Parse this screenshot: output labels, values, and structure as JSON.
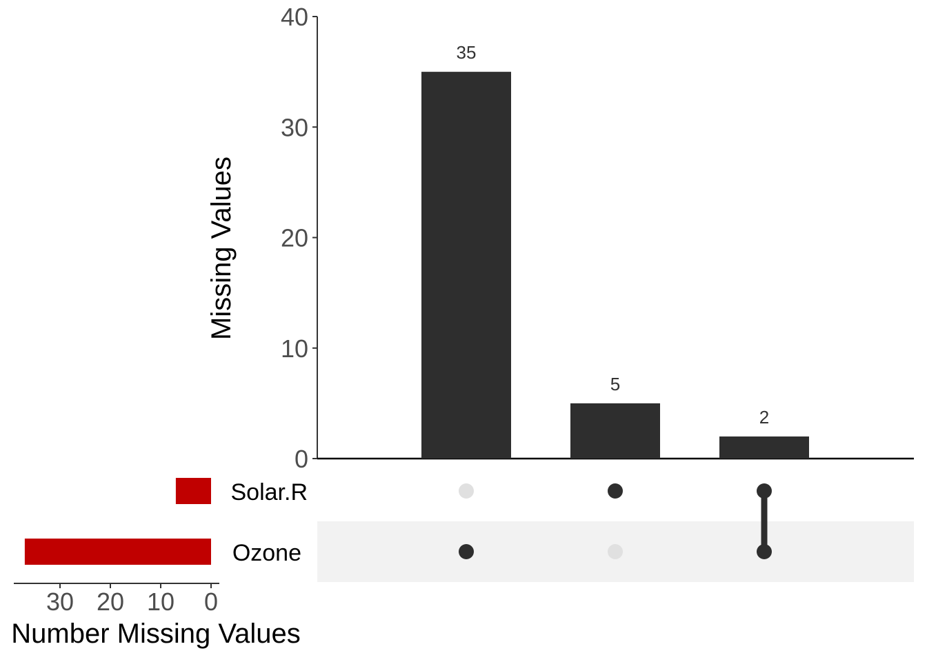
{
  "chart_data": [
    {
      "type": "bar",
      "panel": "intersection-size",
      "ylabel": "Missing Values",
      "ylim": [
        0,
        40
      ],
      "yticks": [
        "0",
        "10",
        "20",
        "30",
        "40"
      ],
      "bars": [
        {
          "sets": [
            "Ozone"
          ],
          "value": 35,
          "label": "35"
        },
        {
          "sets": [
            "Solar.R"
          ],
          "value": 5,
          "label": "5"
        },
        {
          "sets": [
            "Solar.R",
            "Ozone"
          ],
          "value": 2,
          "label": "2"
        }
      ],
      "bar_color": "#2e2e2e"
    },
    {
      "type": "bar",
      "panel": "set-size",
      "orientation": "horizontal-reversed",
      "xlabel": "Number Missing Values",
      "xlim": [
        0,
        40
      ],
      "xticks": [
        "30",
        "20",
        "10",
        "0"
      ],
      "sets": [
        "Solar.R",
        "Ozone"
      ],
      "values": [
        7,
        37
      ],
      "bar_color": "#c00000"
    }
  ],
  "matrix": {
    "active_color": "#2e2e2e",
    "inactive_color": "#e0e0e0",
    "stripe_color": "#f2f2f2"
  }
}
